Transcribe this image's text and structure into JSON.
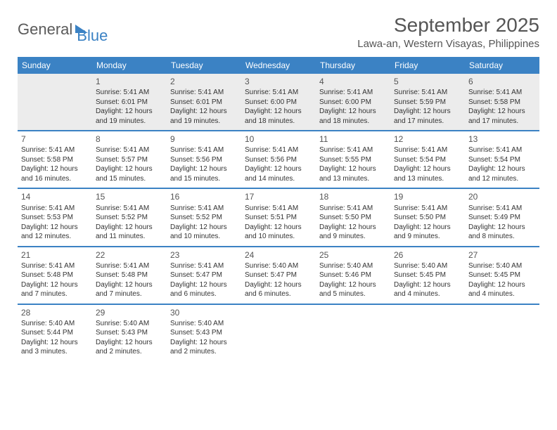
{
  "brand": {
    "text1": "General",
    "text2": "Blue"
  },
  "title": "September 2025",
  "location": "Lawa-an, Western Visayas, Philippines",
  "day_headers": [
    "Sunday",
    "Monday",
    "Tuesday",
    "Wednesday",
    "Thursday",
    "Friday",
    "Saturday"
  ],
  "colors": {
    "header_bg": "#3b82c4",
    "header_text": "#ffffff",
    "firstrow_bg": "#ececec",
    "text": "#333333",
    "title_text": "#555555"
  },
  "weeks": [
    [
      null,
      {
        "n": "1",
        "sr": "Sunrise: 5:41 AM",
        "ss": "Sunset: 6:01 PM",
        "dl": "Daylight: 12 hours and 19 minutes."
      },
      {
        "n": "2",
        "sr": "Sunrise: 5:41 AM",
        "ss": "Sunset: 6:01 PM",
        "dl": "Daylight: 12 hours and 19 minutes."
      },
      {
        "n": "3",
        "sr": "Sunrise: 5:41 AM",
        "ss": "Sunset: 6:00 PM",
        "dl": "Daylight: 12 hours and 18 minutes."
      },
      {
        "n": "4",
        "sr": "Sunrise: 5:41 AM",
        "ss": "Sunset: 6:00 PM",
        "dl": "Daylight: 12 hours and 18 minutes."
      },
      {
        "n": "5",
        "sr": "Sunrise: 5:41 AM",
        "ss": "Sunset: 5:59 PM",
        "dl": "Daylight: 12 hours and 17 minutes."
      },
      {
        "n": "6",
        "sr": "Sunrise: 5:41 AM",
        "ss": "Sunset: 5:58 PM",
        "dl": "Daylight: 12 hours and 17 minutes."
      }
    ],
    [
      {
        "n": "7",
        "sr": "Sunrise: 5:41 AM",
        "ss": "Sunset: 5:58 PM",
        "dl": "Daylight: 12 hours and 16 minutes."
      },
      {
        "n": "8",
        "sr": "Sunrise: 5:41 AM",
        "ss": "Sunset: 5:57 PM",
        "dl": "Daylight: 12 hours and 15 minutes."
      },
      {
        "n": "9",
        "sr": "Sunrise: 5:41 AM",
        "ss": "Sunset: 5:56 PM",
        "dl": "Daylight: 12 hours and 15 minutes."
      },
      {
        "n": "10",
        "sr": "Sunrise: 5:41 AM",
        "ss": "Sunset: 5:56 PM",
        "dl": "Daylight: 12 hours and 14 minutes."
      },
      {
        "n": "11",
        "sr": "Sunrise: 5:41 AM",
        "ss": "Sunset: 5:55 PM",
        "dl": "Daylight: 12 hours and 13 minutes."
      },
      {
        "n": "12",
        "sr": "Sunrise: 5:41 AM",
        "ss": "Sunset: 5:54 PM",
        "dl": "Daylight: 12 hours and 13 minutes."
      },
      {
        "n": "13",
        "sr": "Sunrise: 5:41 AM",
        "ss": "Sunset: 5:54 PM",
        "dl": "Daylight: 12 hours and 12 minutes."
      }
    ],
    [
      {
        "n": "14",
        "sr": "Sunrise: 5:41 AM",
        "ss": "Sunset: 5:53 PM",
        "dl": "Daylight: 12 hours and 12 minutes."
      },
      {
        "n": "15",
        "sr": "Sunrise: 5:41 AM",
        "ss": "Sunset: 5:52 PM",
        "dl": "Daylight: 12 hours and 11 minutes."
      },
      {
        "n": "16",
        "sr": "Sunrise: 5:41 AM",
        "ss": "Sunset: 5:52 PM",
        "dl": "Daylight: 12 hours and 10 minutes."
      },
      {
        "n": "17",
        "sr": "Sunrise: 5:41 AM",
        "ss": "Sunset: 5:51 PM",
        "dl": "Daylight: 12 hours and 10 minutes."
      },
      {
        "n": "18",
        "sr": "Sunrise: 5:41 AM",
        "ss": "Sunset: 5:50 PM",
        "dl": "Daylight: 12 hours and 9 minutes."
      },
      {
        "n": "19",
        "sr": "Sunrise: 5:41 AM",
        "ss": "Sunset: 5:50 PM",
        "dl": "Daylight: 12 hours and 9 minutes."
      },
      {
        "n": "20",
        "sr": "Sunrise: 5:41 AM",
        "ss": "Sunset: 5:49 PM",
        "dl": "Daylight: 12 hours and 8 minutes."
      }
    ],
    [
      {
        "n": "21",
        "sr": "Sunrise: 5:41 AM",
        "ss": "Sunset: 5:48 PM",
        "dl": "Daylight: 12 hours and 7 minutes."
      },
      {
        "n": "22",
        "sr": "Sunrise: 5:41 AM",
        "ss": "Sunset: 5:48 PM",
        "dl": "Daylight: 12 hours and 7 minutes."
      },
      {
        "n": "23",
        "sr": "Sunrise: 5:41 AM",
        "ss": "Sunset: 5:47 PM",
        "dl": "Daylight: 12 hours and 6 minutes."
      },
      {
        "n": "24",
        "sr": "Sunrise: 5:40 AM",
        "ss": "Sunset: 5:47 PM",
        "dl": "Daylight: 12 hours and 6 minutes."
      },
      {
        "n": "25",
        "sr": "Sunrise: 5:40 AM",
        "ss": "Sunset: 5:46 PM",
        "dl": "Daylight: 12 hours and 5 minutes."
      },
      {
        "n": "26",
        "sr": "Sunrise: 5:40 AM",
        "ss": "Sunset: 5:45 PM",
        "dl": "Daylight: 12 hours and 4 minutes."
      },
      {
        "n": "27",
        "sr": "Sunrise: 5:40 AM",
        "ss": "Sunset: 5:45 PM",
        "dl": "Daylight: 12 hours and 4 minutes."
      }
    ],
    [
      {
        "n": "28",
        "sr": "Sunrise: 5:40 AM",
        "ss": "Sunset: 5:44 PM",
        "dl": "Daylight: 12 hours and 3 minutes."
      },
      {
        "n": "29",
        "sr": "Sunrise: 5:40 AM",
        "ss": "Sunset: 5:43 PM",
        "dl": "Daylight: 12 hours and 2 minutes."
      },
      {
        "n": "30",
        "sr": "Sunrise: 5:40 AM",
        "ss": "Sunset: 5:43 PM",
        "dl": "Daylight: 12 hours and 2 minutes."
      },
      null,
      null,
      null,
      null
    ]
  ]
}
